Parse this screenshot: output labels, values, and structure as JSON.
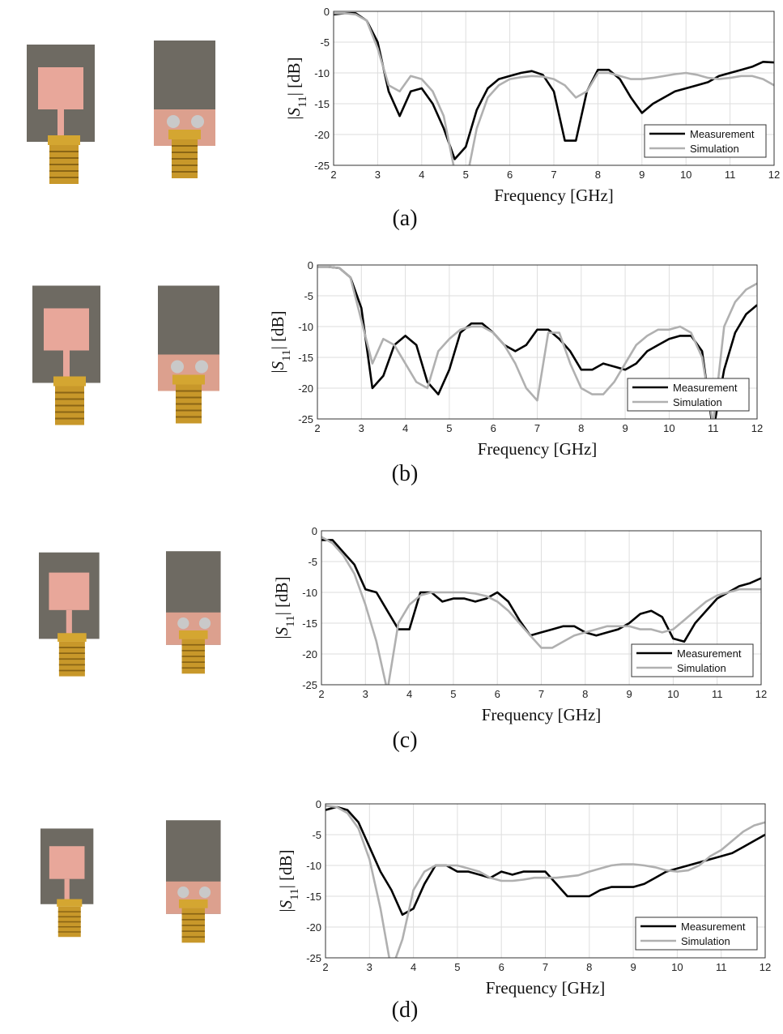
{
  "chart_data": [
    {
      "type": "line",
      "caption": "(a)",
      "xlabel": "Frequency [GHz]",
      "ylabel": [
        "|",
        "S",
        "11",
        "| [dB]"
      ],
      "x": [
        2,
        2.25,
        2.5,
        2.75,
        3,
        3.25,
        3.5,
        3.75,
        4,
        4.25,
        4.5,
        4.75,
        5,
        5.25,
        5.5,
        5.75,
        6,
        6.25,
        6.5,
        6.75,
        7,
        7.25,
        7.5,
        7.75,
        8,
        8.25,
        8.5,
        8.75,
        9,
        9.25,
        9.5,
        9.75,
        10,
        10.25,
        10.5,
        10.75,
        11,
        11.25,
        11.5,
        11.75,
        12
      ],
      "series": [
        {
          "name": "Measurement",
          "color": "#000000",
          "values": [
            -0.5,
            -0.3,
            -0.3,
            -1.5,
            -5,
            -13,
            -17,
            -13,
            -12.5,
            -15,
            -19,
            -24,
            -22,
            -16,
            -12.5,
            -11,
            -10.5,
            -10,
            -9.7,
            -10.3,
            -13,
            -21,
            -21,
            -13,
            -9.5,
            -9.5,
            -11,
            -14,
            -16.5,
            -15,
            -14,
            -13,
            -12.5,
            -12,
            -11.5,
            -10.5,
            -10,
            -9.5,
            -9,
            -8.2,
            -8.3
          ]
        },
        {
          "name": "Simulation",
          "color": "#b0b0b0",
          "values": [
            -0.3,
            -0.3,
            -0.5,
            -1.5,
            -6,
            -12,
            -13,
            -10.5,
            -11,
            -13,
            -17,
            -26,
            -28,
            -19,
            -14,
            -12,
            -11,
            -10.7,
            -10.5,
            -10.6,
            -11,
            -12,
            -14,
            -13,
            -10,
            -10,
            -10.5,
            -11,
            -11,
            -10.8,
            -10.5,
            -10.2,
            -10,
            -10.3,
            -10.8,
            -11,
            -10.8,
            -10.5,
            -10.5,
            -11,
            -12
          ]
        }
      ],
      "xlim": [
        2,
        12
      ],
      "ylim": [
        -25,
        0
      ],
      "xticks": [
        2,
        3,
        4,
        5,
        6,
        7,
        8,
        9,
        10,
        11,
        12
      ],
      "yticks": [
        0,
        -5,
        -10,
        -15,
        -20,
        -25
      ],
      "grid": true,
      "legend": "lower right"
    },
    {
      "type": "line",
      "caption": "(b)",
      "xlabel": "Frequency [GHz]",
      "ylabel": [
        "|",
        "S",
        "11",
        "| [dB]"
      ],
      "x": [
        2,
        2.25,
        2.5,
        2.75,
        3,
        3.25,
        3.5,
        3.75,
        4,
        4.25,
        4.5,
        4.75,
        5,
        5.25,
        5.5,
        5.75,
        6,
        6.25,
        6.5,
        6.75,
        7,
        7.25,
        7.5,
        7.75,
        8,
        8.25,
        8.5,
        8.75,
        9,
        9.25,
        9.5,
        9.75,
        10,
        10.25,
        10.5,
        10.75,
        11,
        11.25,
        11.5,
        11.75,
        12
      ],
      "series": [
        {
          "name": "Measurement",
          "color": "#000000",
          "values": [
            -0.3,
            -0.3,
            -0.5,
            -2,
            -7,
            -20,
            -18,
            -13,
            -11.5,
            -13,
            -19,
            -21,
            -17,
            -11,
            -9.5,
            -9.5,
            -11,
            -13,
            -14,
            -13,
            -10.5,
            -10.5,
            -12,
            -14,
            -17,
            -17,
            -16,
            -16.5,
            -17,
            -16,
            -14,
            -13,
            -12,
            -11.5,
            -11.5,
            -14,
            -27,
            -17,
            -11,
            -8,
            -6.5
          ]
        },
        {
          "name": "Simulation",
          "color": "#b0b0b0",
          "values": [
            -0.3,
            -0.3,
            -0.5,
            -2,
            -9,
            -16,
            -12,
            -13,
            -16,
            -19,
            -20,
            -14,
            -12,
            -10.5,
            -10,
            -10,
            -11,
            -13,
            -16,
            -20,
            -22,
            -11,
            -11,
            -16,
            -20,
            -21,
            -21,
            -19,
            -16,
            -13,
            -11.5,
            -10.5,
            -10.5,
            -10,
            -11,
            -15,
            -26,
            -10,
            -6,
            -4,
            -3
          ]
        }
      ],
      "xlim": [
        2,
        12
      ],
      "ylim": [
        -25,
        0
      ],
      "xticks": [
        2,
        3,
        4,
        5,
        6,
        7,
        8,
        9,
        10,
        11,
        12
      ],
      "yticks": [
        0,
        -5,
        -10,
        -15,
        -20,
        -25
      ],
      "grid": true,
      "legend": "lower right"
    },
    {
      "type": "line",
      "caption": "(c)",
      "xlabel": "Frequency [GHz]",
      "ylabel": [
        "|",
        "S",
        "11",
        "| [dB]"
      ],
      "x": [
        2,
        2.25,
        2.5,
        2.75,
        3,
        3.25,
        3.5,
        3.75,
        4,
        4.25,
        4.5,
        4.75,
        5,
        5.25,
        5.5,
        5.75,
        6,
        6.25,
        6.5,
        6.75,
        7,
        7.25,
        7.5,
        7.75,
        8,
        8.25,
        8.5,
        8.75,
        9,
        9.25,
        9.5,
        9.75,
        10,
        10.25,
        10.5,
        10.75,
        11,
        11.25,
        11.5,
        11.75,
        12
      ],
      "series": [
        {
          "name": "Measurement",
          "color": "#000000",
          "values": [
            -1.5,
            -1.5,
            -3.5,
            -5.5,
            -9.5,
            -10,
            -13,
            -16,
            -16,
            -10,
            -10,
            -11.5,
            -11,
            -11,
            -11.5,
            -11,
            -10,
            -11.5,
            -14.5,
            -17,
            -16.5,
            -16,
            -15.5,
            -15.5,
            -16.5,
            -17,
            -16.5,
            -16,
            -15,
            -13.5,
            -13,
            -14,
            -17.5,
            -18,
            -15,
            -13,
            -11,
            -10,
            -9,
            -8.5,
            -7.7
          ]
        },
        {
          "name": "Simulation",
          "color": "#b0b0b0",
          "values": [
            -1,
            -2,
            -4,
            -7,
            -12,
            -18,
            -26,
            -15,
            -12,
            -10.5,
            -10,
            -10,
            -10,
            -10,
            -10.2,
            -10.6,
            -11.5,
            -13,
            -15,
            -17,
            -19,
            -19,
            -18,
            -17,
            -16.5,
            -16,
            -15.5,
            -15.5,
            -15.5,
            -16,
            -16,
            -16.5,
            -16,
            -14.5,
            -13,
            -11.5,
            -10.5,
            -10,
            -9.5,
            -9.5,
            -9.5
          ]
        }
      ],
      "xlim": [
        2,
        12
      ],
      "ylim": [
        -25,
        0
      ],
      "xticks": [
        2,
        3,
        4,
        5,
        6,
        7,
        8,
        9,
        10,
        11,
        12
      ],
      "yticks": [
        0,
        -5,
        -10,
        -15,
        -20,
        -25
      ],
      "grid": true,
      "legend": "lower right"
    },
    {
      "type": "line",
      "caption": "(d)",
      "xlabel": "Frequency [GHz]",
      "ylabel": [
        "|",
        "S",
        "11",
        "| [dB]"
      ],
      "x": [
        2,
        2.25,
        2.5,
        2.75,
        3,
        3.25,
        3.5,
        3.75,
        4,
        4.25,
        4.5,
        4.75,
        5,
        5.25,
        5.5,
        5.75,
        6,
        6.25,
        6.5,
        6.75,
        7,
        7.25,
        7.5,
        7.75,
        8,
        8.25,
        8.5,
        8.75,
        9,
        9.25,
        9.5,
        9.75,
        10,
        10.25,
        10.5,
        10.75,
        11,
        11.25,
        11.5,
        11.75,
        12
      ],
      "series": [
        {
          "name": "Measurement",
          "color": "#000000",
          "values": [
            -1,
            -0.5,
            -1,
            -3,
            -7,
            -11,
            -14,
            -18,
            -17,
            -13,
            -10,
            -10,
            -11,
            -11,
            -11.5,
            -12,
            -11,
            -11.5,
            -11,
            -11,
            -11,
            -13,
            -15,
            -15,
            -15,
            -14,
            -13.5,
            -13.5,
            -13.5,
            -13,
            -12,
            -11,
            -10.5,
            -10,
            -9.5,
            -9,
            -8.5,
            -8,
            -7,
            -6,
            -5
          ]
        },
        {
          "name": "Simulation",
          "color": "#b0b0b0",
          "values": [
            -0.3,
            -0.5,
            -1.5,
            -4,
            -9,
            -17,
            -27,
            -22,
            -14,
            -11,
            -10,
            -10,
            -10,
            -10.5,
            -11,
            -12,
            -12.5,
            -12.5,
            -12.3,
            -12,
            -12,
            -12,
            -11.8,
            -11.6,
            -11,
            -10.5,
            -10,
            -9.8,
            -9.8,
            -10,
            -10.3,
            -10.8,
            -11,
            -10.8,
            -10,
            -8.5,
            -7.5,
            -6,
            -4.5,
            -3.5,
            -3
          ]
        }
      ],
      "xlim": [
        2,
        12
      ],
      "ylim": [
        -25,
        0
      ],
      "xticks": [
        2,
        3,
        4,
        5,
        6,
        7,
        8,
        9,
        10,
        11,
        12
      ],
      "yticks": [
        0,
        -5,
        -10,
        -15,
        -20,
        -25
      ],
      "grid": true,
      "legend": "lower right"
    }
  ]
}
